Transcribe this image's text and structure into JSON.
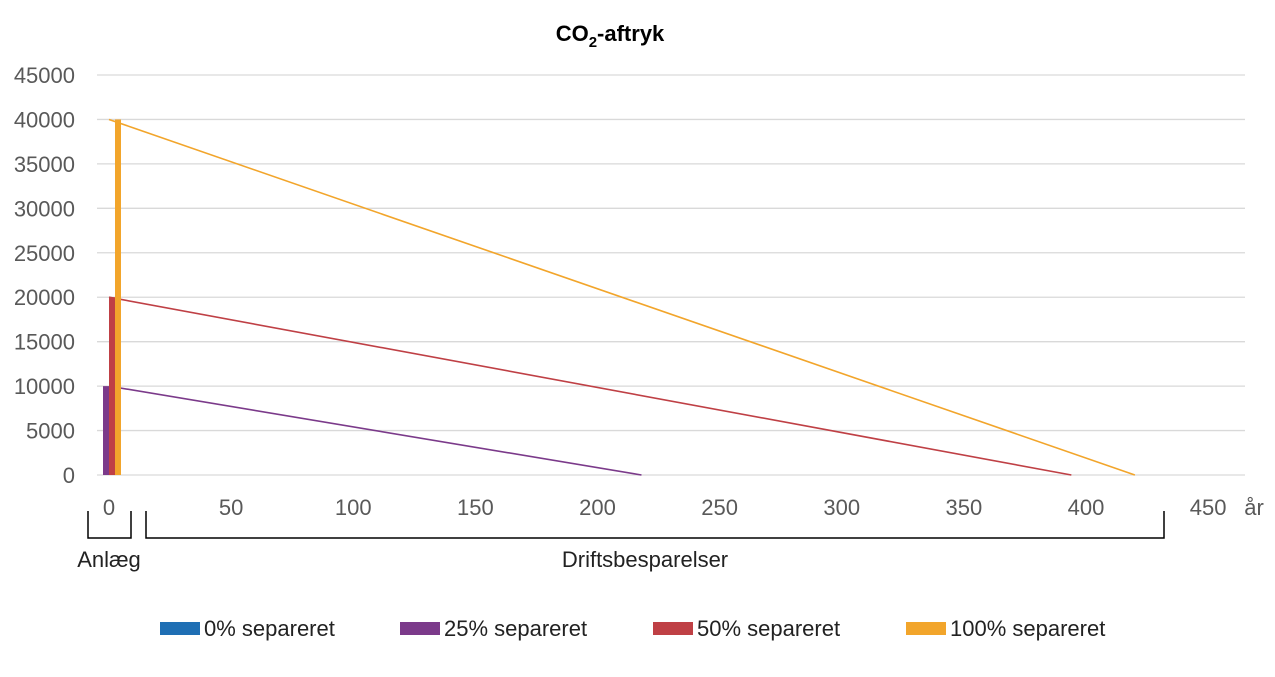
{
  "chart_data": {
    "type": "line",
    "title": "CO",
    "title_sub": "2",
    "title_suffix": "-aftryk",
    "xlabel": "år",
    "ylabel": "",
    "xlim": [
      0,
      450
    ],
    "ylim": [
      0,
      45000
    ],
    "x_ticks": [
      0,
      50,
      100,
      150,
      200,
      250,
      300,
      350,
      400,
      450
    ],
    "y_ticks": [
      0,
      5000,
      10000,
      15000,
      20000,
      25000,
      30000,
      35000,
      40000,
      45000
    ],
    "grid": true,
    "legend_position": "bottom",
    "series": [
      {
        "name": "0% separeret",
        "color": "#1f6fb4",
        "construction": 0,
        "line": []
      },
      {
        "name": "25% separeret",
        "color": "#7b3a8a",
        "construction": 10000,
        "line": [
          [
            0,
            10000
          ],
          [
            218,
            0
          ]
        ]
      },
      {
        "name": "50% separeret",
        "color": "#bf4045",
        "construction": 20000,
        "line": [
          [
            0,
            20000
          ],
          [
            394,
            0
          ]
        ]
      },
      {
        "name": "100% separeret",
        "color": "#f2a52b",
        "construction": 40000,
        "line": [
          [
            0,
            40000
          ],
          [
            420,
            0
          ]
        ]
      }
    ],
    "annotations": {
      "construction_label": "Anlæg",
      "operation_label": "Driftsbesparelser"
    }
  }
}
